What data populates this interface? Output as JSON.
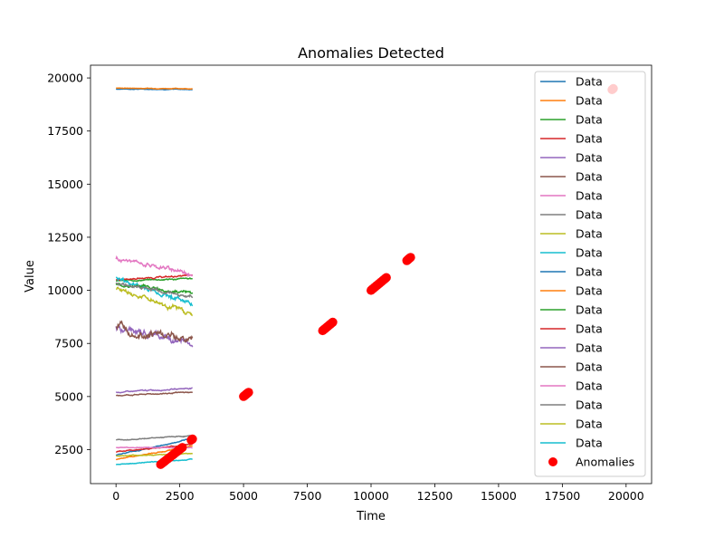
{
  "chart_data": {
    "type": "line",
    "title": "Anomalies Detected",
    "xlabel": "Time",
    "ylabel": "Value",
    "xlim": [
      -1000,
      21000
    ],
    "ylim": [
      900,
      20600
    ],
    "x_ticks": [
      0,
      2500,
      5000,
      7500,
      10000,
      12500,
      15000,
      17500,
      20000
    ],
    "y_ticks": [
      2500,
      5000,
      7500,
      10000,
      12500,
      15000,
      17500,
      20000
    ],
    "legend_position": "upper right",
    "series": [
      {
        "name": "Data",
        "color": "#1f77b4",
        "x_range": [
          0,
          3000
        ],
        "y_start": 19480,
        "y_end": 19460,
        "noise": 15
      },
      {
        "name": "Data",
        "color": "#ff7f0e",
        "x_range": [
          0,
          3000
        ],
        "y_start": 19520,
        "y_end": 19500,
        "noise": 15
      },
      {
        "name": "Data",
        "color": "#2ca02c",
        "x_range": [
          0,
          3000
        ],
        "y_start": 10450,
        "y_end": 10550,
        "noise": 40
      },
      {
        "name": "Data",
        "color": "#d62728",
        "x_range": [
          0,
          3000
        ],
        "y_start": 10500,
        "y_end": 10700,
        "noise": 40
      },
      {
        "name": "Data",
        "color": "#9467bd",
        "x_range": [
          0,
          3000
        ],
        "y_start": 5200,
        "y_end": 5400,
        "noise": 30
      },
      {
        "name": "Data",
        "color": "#8c564b",
        "x_range": [
          0,
          3000
        ],
        "y_start": 5050,
        "y_end": 5200,
        "noise": 30
      },
      {
        "name": "Data",
        "color": "#e377c2",
        "x_range": [
          0,
          3000
        ],
        "y_start": 11500,
        "y_end": 10800,
        "noise": 110
      },
      {
        "name": "Data",
        "color": "#7f7f7f",
        "x_range": [
          0,
          3000
        ],
        "y_start": 2950,
        "y_end": 3150,
        "noise": 25
      },
      {
        "name": "Data",
        "color": "#bcbd22",
        "x_range": [
          0,
          3000
        ],
        "y_start": 10100,
        "y_end": 8900,
        "noise": 130
      },
      {
        "name": "Data",
        "color": "#17becf",
        "x_range": [
          0,
          3000
        ],
        "y_start": 10550,
        "y_end": 9400,
        "noise": 120
      },
      {
        "name": "Data",
        "color": "#1f77b4",
        "x_range": [
          0,
          3000
        ],
        "y_start": 2250,
        "y_end": 3000,
        "noise": 30
      },
      {
        "name": "Data",
        "color": "#ff7f0e",
        "x_range": [
          0,
          3000
        ],
        "y_start": 2050,
        "y_end": 2650,
        "noise": 30
      },
      {
        "name": "Data",
        "color": "#2ca02c",
        "x_range": [
          0,
          3000
        ],
        "y_start": 10300,
        "y_end": 9900,
        "noise": 80
      },
      {
        "name": "Data",
        "color": "#d62728",
        "x_range": [
          0,
          3000
        ],
        "y_start": 2400,
        "y_end": 2750,
        "noise": 25
      },
      {
        "name": "Data",
        "color": "#9467bd",
        "x_range": [
          0,
          3000
        ],
        "y_start": 8200,
        "y_end": 7500,
        "noise": 200
      },
      {
        "name": "Data",
        "color": "#8c564b",
        "x_range": [
          0,
          3000
        ],
        "y_start": 8300,
        "y_end": 7650,
        "noise": 200
      },
      {
        "name": "Data",
        "color": "#e377c2",
        "x_range": [
          0,
          3000
        ],
        "y_start": 2600,
        "y_end": 2600,
        "noise": 20
      },
      {
        "name": "Data",
        "color": "#7f7f7f",
        "x_range": [
          0,
          3000
        ],
        "y_start": 10350,
        "y_end": 9700,
        "noise": 90
      },
      {
        "name": "Data",
        "color": "#bcbd22",
        "x_range": [
          0,
          3000
        ],
        "y_start": 2200,
        "y_end": 2300,
        "noise": 20
      },
      {
        "name": "Data",
        "color": "#17becf",
        "x_range": [
          0,
          3000
        ],
        "y_start": 1800,
        "y_end": 2050,
        "noise": 20
      }
    ],
    "anomalies": {
      "name": "Anomalies",
      "color": "#ff0000",
      "segments": [
        {
          "x_start": 1750,
          "x_end": 2600,
          "y_start": 1800,
          "y_end": 2600,
          "count": 22
        },
        {
          "x_start": 2950,
          "x_end": 3000,
          "y_start": 2950,
          "y_end": 3000,
          "count": 2
        },
        {
          "x_start": 5000,
          "x_end": 5200,
          "y_start": 5000,
          "y_end": 5200,
          "count": 10
        },
        {
          "x_start": 8100,
          "x_end": 8500,
          "y_start": 8100,
          "y_end": 8500,
          "count": 16
        },
        {
          "x_start": 10000,
          "x_end": 10600,
          "y_start": 10000,
          "y_end": 10600,
          "count": 22
        },
        {
          "x_start": 11400,
          "x_end": 11550,
          "y_start": 11400,
          "y_end": 11550,
          "count": 8
        },
        {
          "x_start": 19450,
          "x_end": 19500,
          "y_start": 19450,
          "y_end": 19500,
          "count": 2
        }
      ]
    }
  }
}
